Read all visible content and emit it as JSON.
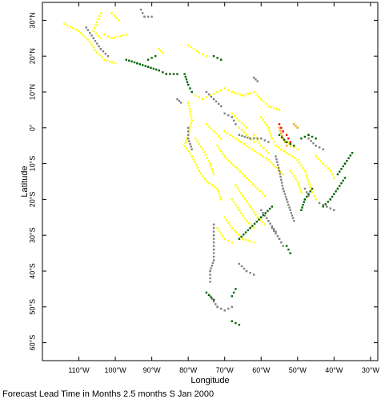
{
  "chart_data": {
    "type": "heatmap",
    "title": "",
    "xlabel": "Longitude",
    "ylabel": "Latitude",
    "xlim": [
      -120,
      -28
    ],
    "ylim": [
      -65,
      35
    ],
    "x_ticks": [
      {
        "value": -110,
        "label": "110°W"
      },
      {
        "value": -100,
        "label": "100°W"
      },
      {
        "value": -90,
        "label": "90°W"
      },
      {
        "value": -80,
        "label": "80°W"
      },
      {
        "value": -70,
        "label": "70°W"
      },
      {
        "value": -60,
        "label": "60°W"
      },
      {
        "value": -50,
        "label": "50°W"
      },
      {
        "value": -40,
        "label": "40°W"
      },
      {
        "value": -30,
        "label": "30°W"
      }
    ],
    "y_ticks": [
      {
        "value": 30,
        "label": "30°N"
      },
      {
        "value": 20,
        "label": "20°N"
      },
      {
        "value": 10,
        "label": "10°N"
      },
      {
        "value": 0,
        "label": "0°"
      },
      {
        "value": -10,
        "label": "10°S"
      },
      {
        "value": -20,
        "label": "20°S"
      },
      {
        "value": -30,
        "label": "30°S"
      },
      {
        "value": -40,
        "label": "40°S"
      },
      {
        "value": -50,
        "label": "50°S"
      },
      {
        "value": -60,
        "label": "60°S"
      }
    ],
    "grid": false,
    "colors": {
      "yellow": "#ffff00",
      "orange": "#ffa500",
      "red": "#ff0000",
      "green": "#006400",
      "gray": "#808080"
    },
    "segments": [
      {
        "cls": "yellow",
        "pts": [
          [
            -114,
            29
          ],
          [
            -110,
            27
          ],
          [
            -107,
            24
          ],
          [
            -105,
            21
          ],
          [
            -103,
            19
          ],
          [
            -100,
            18
          ]
        ]
      },
      {
        "cls": "yellow",
        "pts": [
          [
            -104,
            32
          ],
          [
            -106,
            27
          ],
          [
            -104,
            25
          ]
        ]
      },
      {
        "cls": "yellow",
        "pts": [
          [
            -103,
            26
          ],
          [
            -101,
            25
          ],
          [
            -97,
            26
          ]
        ]
      },
      {
        "cls": "yellow",
        "pts": [
          [
            -101,
            32
          ],
          [
            -99,
            30
          ]
        ]
      },
      {
        "cls": "yellow",
        "pts": [
          [
            -88,
            22
          ],
          [
            -87,
            21
          ]
        ]
      },
      {
        "cls": "yellow",
        "pts": [
          [
            -80,
            23
          ],
          [
            -77,
            21
          ],
          [
            -75,
            20
          ]
        ]
      },
      {
        "cls": "yellow",
        "pts": [
          [
            -78,
            9
          ],
          [
            -76,
            8
          ],
          [
            -74,
            9
          ],
          [
            -72,
            10
          ],
          [
            -70,
            11
          ],
          [
            -68,
            10
          ],
          [
            -65,
            9
          ],
          [
            -62,
            10
          ],
          [
            -60,
            8
          ],
          [
            -58,
            6
          ],
          [
            -55,
            5
          ]
        ]
      },
      {
        "cls": "yellow",
        "pts": [
          [
            -80,
            7
          ],
          [
            -79,
            2
          ],
          [
            -80,
            -2
          ],
          [
            -81,
            -5
          ],
          [
            -79,
            -8
          ],
          [
            -77,
            -12
          ],
          [
            -75,
            -15
          ],
          [
            -72,
            -17
          ],
          [
            -71,
            -20
          ]
        ]
      },
      {
        "cls": "yellow",
        "pts": [
          [
            -78,
            -3
          ],
          [
            -76,
            -6
          ],
          [
            -74,
            -10
          ],
          [
            -73,
            -13
          ]
        ]
      },
      {
        "cls": "yellow",
        "pts": [
          [
            -70,
            -1
          ],
          [
            -67,
            -3
          ],
          [
            -64,
            -5
          ],
          [
            -61,
            -7
          ],
          [
            -58,
            -9
          ],
          [
            -56,
            -11
          ],
          [
            -54,
            -13
          ]
        ]
      },
      {
        "cls": "yellow",
        "pts": [
          [
            -72,
            -5
          ],
          [
            -70,
            -8
          ],
          [
            -67,
            -11
          ],
          [
            -64,
            -14
          ],
          [
            -61,
            -17
          ],
          [
            -59,
            -19
          ]
        ]
      },
      {
        "cls": "yellow",
        "pts": [
          [
            -67,
            -16
          ],
          [
            -65,
            -19
          ],
          [
            -63,
            -22
          ],
          [
            -61,
            -25
          ],
          [
            -59,
            -27
          ]
        ]
      },
      {
        "cls": "yellow",
        "pts": [
          [
            -68,
            -20
          ],
          [
            -66,
            -23
          ],
          [
            -64,
            -26
          ],
          [
            -62,
            -28
          ]
        ]
      },
      {
        "cls": "yellow",
        "pts": [
          [
            -70,
            -25
          ],
          [
            -68,
            -28
          ],
          [
            -65,
            -31
          ],
          [
            -62,
            -32
          ]
        ]
      },
      {
        "cls": "yellow",
        "pts": [
          [
            -72,
            -28
          ],
          [
            -70,
            -31
          ],
          [
            -68,
            -32
          ]
        ]
      },
      {
        "cls": "yellow",
        "pts": [
          [
            -60,
            3
          ],
          [
            -58,
            0
          ],
          [
            -57,
            -3
          ],
          [
            -56,
            -5
          ],
          [
            -53,
            -7
          ],
          [
            -50,
            -9
          ],
          [
            -48,
            -12
          ],
          [
            -47,
            -15
          ],
          [
            -46,
            -18
          ],
          [
            -45,
            -20
          ]
        ]
      },
      {
        "cls": "yellow",
        "pts": [
          [
            -62,
            -2
          ],
          [
            -60,
            -5
          ],
          [
            -58,
            -7
          ]
        ]
      },
      {
        "cls": "yellow",
        "pts": [
          [
            -66,
            0
          ],
          [
            -64,
            -2
          ],
          [
            -62,
            -4
          ]
        ]
      },
      {
        "cls": "yellow",
        "pts": [
          [
            -52,
            -12
          ],
          [
            -50,
            -15
          ],
          [
            -49,
            -18
          ]
        ]
      },
      {
        "cls": "yellow",
        "pts": [
          [
            -45,
            -8
          ],
          [
            -43,
            -10
          ],
          [
            -41,
            -12
          ],
          [
            -40,
            -14
          ]
        ]
      },
      {
        "cls": "yellow",
        "pts": [
          [
            -54,
            -3
          ],
          [
            -52,
            -5
          ],
          [
            -50,
            -6
          ]
        ]
      },
      {
        "cls": "yellow",
        "pts": [
          [
            -68,
            4
          ],
          [
            -66,
            2
          ],
          [
            -64,
            0
          ]
        ]
      },
      {
        "cls": "yellow",
        "pts": [
          [
            -75,
            1
          ],
          [
            -73,
            -1
          ],
          [
            -71,
            -3
          ]
        ]
      },
      {
        "cls": "orange",
        "pts": [
          [
            -55,
            0
          ],
          [
            -54,
            -3
          ],
          [
            -53,
            -5
          ]
        ]
      },
      {
        "cls": "orange",
        "pts": [
          [
            -51,
            1
          ],
          [
            -50,
            0
          ]
        ]
      },
      {
        "cls": "red",
        "pts": [
          [
            -55,
            1
          ],
          [
            -54,
            -1
          ]
        ]
      },
      {
        "cls": "red",
        "pts": [
          [
            -53,
            -2
          ],
          [
            -52,
            -4
          ]
        ]
      },
      {
        "cls": "gray",
        "pts": [
          [
            -108,
            28
          ],
          [
            -106,
            25
          ],
          [
            -104,
            22
          ],
          [
            -102,
            20
          ]
        ]
      },
      {
        "cls": "gray",
        "pts": [
          [
            -93,
            33
          ],
          [
            -92,
            31
          ],
          [
            -90,
            31
          ]
        ]
      },
      {
        "cls": "gray",
        "pts": [
          [
            -83,
            8
          ],
          [
            -82,
            7
          ]
        ]
      },
      {
        "cls": "gray",
        "pts": [
          [
            -75,
            10
          ],
          [
            -73,
            8
          ],
          [
            -71,
            6
          ]
        ]
      },
      {
        "cls": "gray",
        "pts": [
          [
            -70,
            4
          ],
          [
            -68,
            3
          ],
          [
            -67,
            1
          ]
        ]
      },
      {
        "cls": "gray",
        "pts": [
          [
            -62,
            14
          ],
          [
            -61,
            13
          ]
        ]
      },
      {
        "cls": "gray",
        "pts": [
          [
            -80,
            0
          ],
          [
            -80,
            -3
          ],
          [
            -79,
            -6
          ]
        ]
      },
      {
        "cls": "gray",
        "pts": [
          [
            -66,
            -2
          ],
          [
            -63,
            -3
          ],
          [
            -60,
            -3
          ],
          [
            -58,
            -4
          ]
        ]
      },
      {
        "cls": "gray",
        "pts": [
          [
            -56,
            -8
          ],
          [
            -55,
            -12
          ],
          [
            -54,
            -17
          ],
          [
            -53,
            -20
          ],
          [
            -52,
            -23
          ],
          [
            -51,
            -26
          ]
        ]
      },
      {
        "cls": "gray",
        "pts": [
          [
            -47,
            -3
          ],
          [
            -45,
            -5
          ],
          [
            -43,
            -6
          ]
        ]
      },
      {
        "cls": "gray",
        "pts": [
          [
            -44,
            -21
          ],
          [
            -42,
            -22
          ],
          [
            -40,
            -23
          ]
        ]
      },
      {
        "cls": "gray",
        "pts": [
          [
            -60,
            -23
          ],
          [
            -58,
            -26
          ],
          [
            -56,
            -29
          ]
        ]
      },
      {
        "cls": "gray",
        "pts": [
          [
            -73,
            -27
          ],
          [
            -73,
            -30
          ],
          [
            -73,
            -34
          ],
          [
            -73,
            -37
          ],
          [
            -74,
            -40
          ],
          [
            -74,
            -43
          ]
        ]
      },
      {
        "cls": "gray",
        "pts": [
          [
            -66,
            -38
          ],
          [
            -64,
            -40
          ],
          [
            -62,
            -41
          ]
        ]
      },
      {
        "cls": "gray",
        "pts": [
          [
            -74,
            -47
          ],
          [
            -72,
            -50
          ],
          [
            -70,
            -51
          ],
          [
            -68,
            -50
          ]
        ]
      },
      {
        "cls": "gray",
        "pts": [
          [
            -57,
            -28
          ],
          [
            -55,
            -31
          ],
          [
            -54,
            -33
          ]
        ]
      },
      {
        "cls": "gray",
        "pts": [
          [
            -48,
            -17
          ],
          [
            -47,
            -19
          ]
        ]
      },
      {
        "cls": "green",
        "pts": [
          [
            -97,
            19
          ],
          [
            -94,
            18
          ],
          [
            -91,
            17
          ],
          [
            -88,
            16
          ],
          [
            -86,
            15
          ],
          [
            -83,
            15
          ]
        ]
      },
      {
        "cls": "green",
        "pts": [
          [
            -91,
            19
          ],
          [
            -89,
            20
          ]
        ]
      },
      {
        "cls": "green",
        "pts": [
          [
            -81,
            15
          ],
          [
            -80,
            12
          ],
          [
            -79,
            10
          ]
        ]
      },
      {
        "cls": "green",
        "pts": [
          [
            -73,
            20
          ],
          [
            -71,
            19
          ]
        ]
      },
      {
        "cls": "green",
        "pts": [
          [
            -55,
            -2
          ],
          [
            -53,
            -4
          ],
          [
            -51,
            -5
          ]
        ]
      },
      {
        "cls": "green",
        "pts": [
          [
            -49,
            -3
          ],
          [
            -47,
            -2
          ],
          [
            -45,
            -3
          ]
        ]
      },
      {
        "cls": "green",
        "pts": [
          [
            -35,
            -7
          ],
          [
            -37,
            -10
          ],
          [
            -39,
            -13
          ]
        ]
      },
      {
        "cls": "green",
        "pts": [
          [
            -37,
            -14
          ],
          [
            -39,
            -17
          ],
          [
            -41,
            -20
          ],
          [
            -43,
            -22
          ]
        ]
      },
      {
        "cls": "green",
        "pts": [
          [
            -46,
            -17
          ],
          [
            -48,
            -20
          ],
          [
            -49,
            -23
          ]
        ]
      },
      {
        "cls": "green",
        "pts": [
          [
            -57,
            -22
          ],
          [
            -60,
            -25
          ],
          [
            -63,
            -28
          ],
          [
            -66,
            -31
          ]
        ]
      },
      {
        "cls": "green",
        "pts": [
          [
            -53,
            -33
          ],
          [
            -52,
            -35
          ]
        ]
      },
      {
        "cls": "green",
        "pts": [
          [
            -67,
            -45
          ],
          [
            -68,
            -47
          ]
        ]
      },
      {
        "cls": "green",
        "pts": [
          [
            -68,
            -54
          ],
          [
            -66,
            -55
          ]
        ]
      },
      {
        "cls": "green",
        "pts": [
          [
            -75,
            -46
          ],
          [
            -73,
            -48
          ]
        ]
      }
    ]
  },
  "footer_text": "Forecast Lead Time in Months 2.5 months S Jan 2000"
}
